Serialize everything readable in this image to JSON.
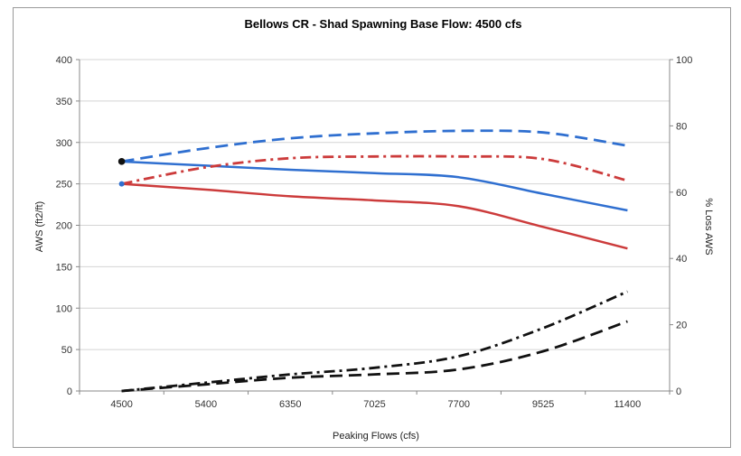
{
  "chart_data": {
    "type": "line",
    "title": "Bellows CR -  Shad Spawning  Base Flow: 4500 cfs",
    "xlabel": "Peaking Flows (cfs)",
    "ylabel": "AWS (ft2/ft)",
    "y2label": "% Loss AWS",
    "categories": [
      "4500",
      "5400",
      "6350",
      "7025",
      "7700",
      "9525",
      "11400"
    ],
    "ylim": [
      0,
      400
    ],
    "yticks": [
      0,
      50,
      100,
      150,
      200,
      250,
      300,
      350,
      400
    ],
    "y2lim": [
      0,
      100
    ],
    "y2ticks": [
      0,
      20,
      40,
      60,
      80,
      100
    ],
    "grid": true,
    "legend": "none",
    "series": [
      {
        "axis": "y1",
        "color": "#2f6fd0",
        "dash": "solid",
        "values": [
          277,
          272,
          267,
          263,
          258,
          238,
          218
        ]
      },
      {
        "axis": "y1",
        "color": "#cc3b3b",
        "dash": "solid",
        "values": [
          250,
          243,
          235,
          230,
          223,
          198,
          172
        ]
      },
      {
        "axis": "y1",
        "color": "#2f6fd0",
        "dash": "dashed",
        "values": [
          277,
          293,
          305,
          311,
          314,
          312,
          296
        ]
      },
      {
        "axis": "y1",
        "color": "#cc3b3b",
        "dash": "dashdot",
        "values": [
          250,
          270,
          281,
          283,
          283,
          280,
          254
        ]
      },
      {
        "axis": "y2",
        "color": "#111111",
        "dash": "dashdot",
        "values": [
          0,
          2.5,
          5,
          7,
          10.5,
          19,
          30
        ]
      },
      {
        "axis": "y2",
        "color": "#111111",
        "dash": "dashed",
        "values": [
          0,
          2,
          4,
          5,
          6.5,
          12,
          21
        ]
      }
    ]
  }
}
